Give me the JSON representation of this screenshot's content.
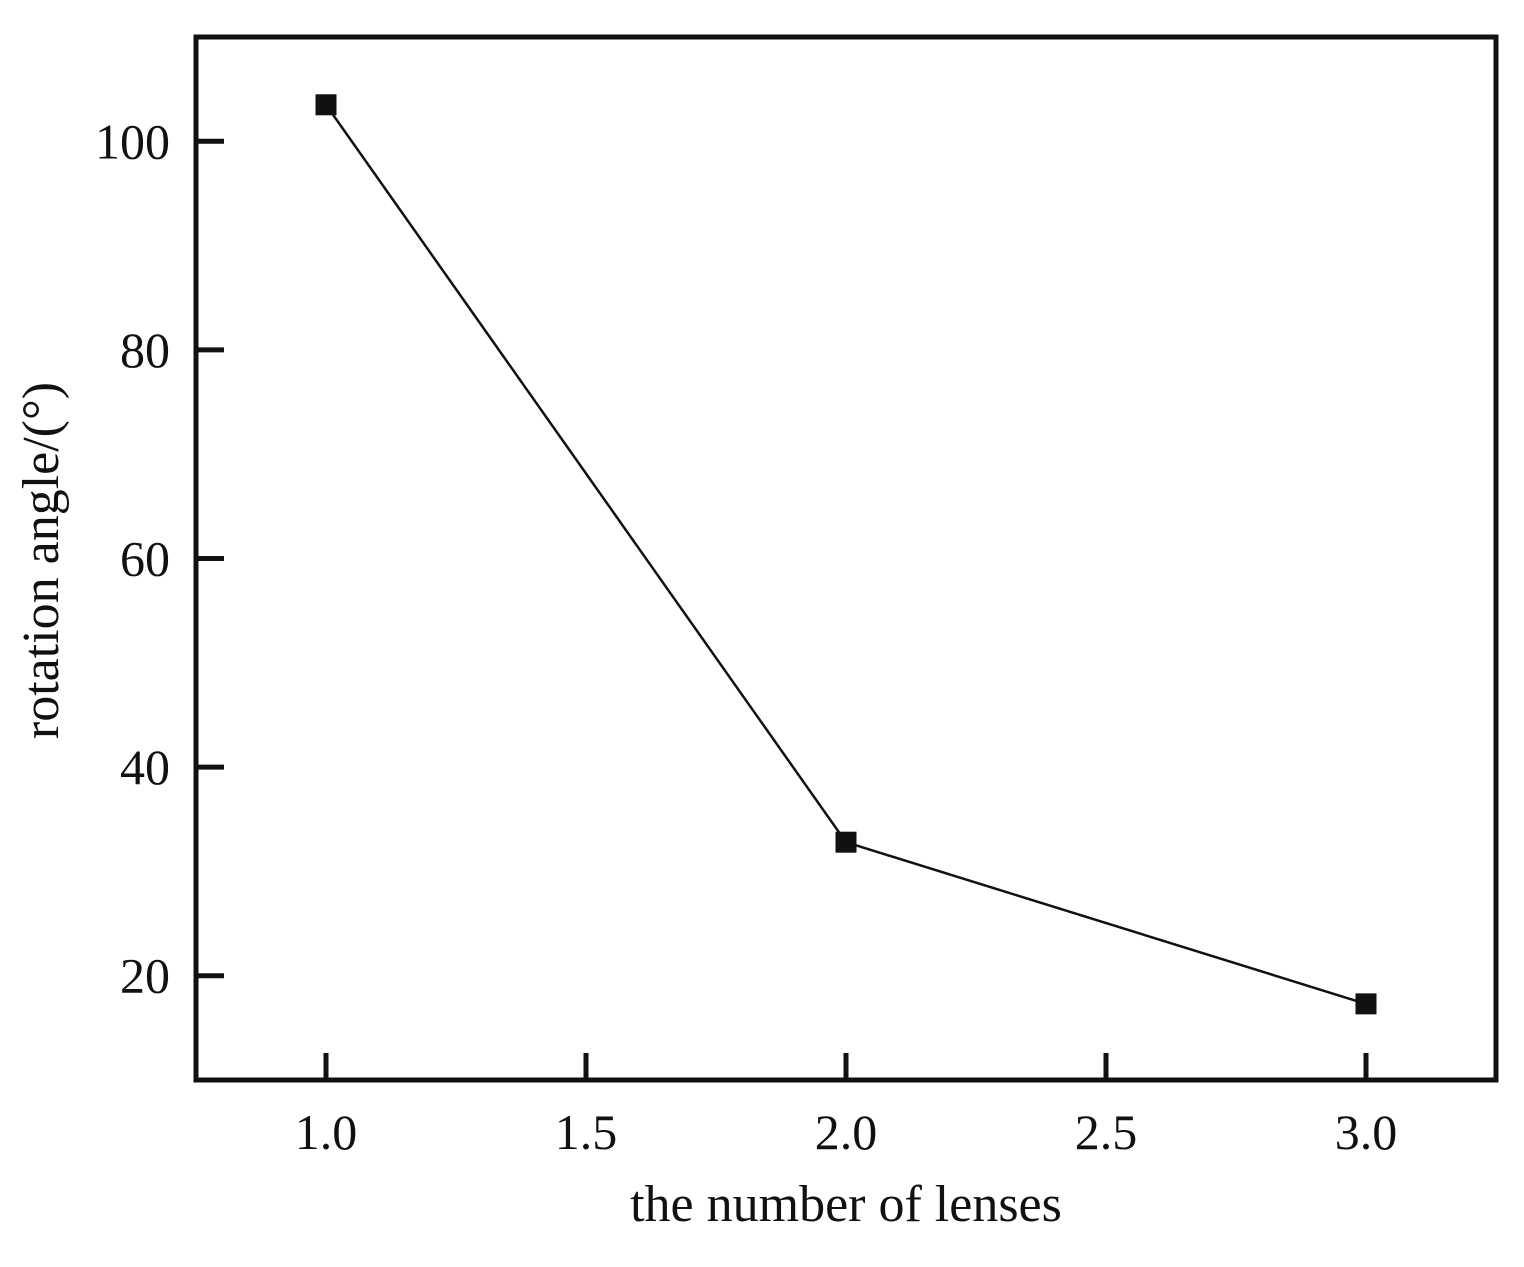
{
  "chart_data": {
    "type": "line",
    "title": "",
    "xlabel": "the number of lenses",
    "ylabel": "rotation angle/(°)",
    "xlim": [
      0.75,
      3.25
    ],
    "ylim": [
      10,
      110
    ],
    "x_ticks": [
      1.0,
      1.5,
      2.0,
      2.5,
      3.0
    ],
    "x_tick_labels": [
      "1.0",
      "1.5",
      "2.0",
      "2.5",
      "3.0"
    ],
    "y_ticks": [
      20,
      40,
      60,
      80,
      100
    ],
    "y_tick_labels": [
      "20",
      "40",
      "60",
      "80",
      "100"
    ],
    "grid": false,
    "legend": "none",
    "series": [
      {
        "marker": "square",
        "color": "#111111",
        "x": [
          1,
          2,
          3
        ],
        "y": [
          103.5,
          32.8,
          17.3
        ]
      }
    ]
  }
}
